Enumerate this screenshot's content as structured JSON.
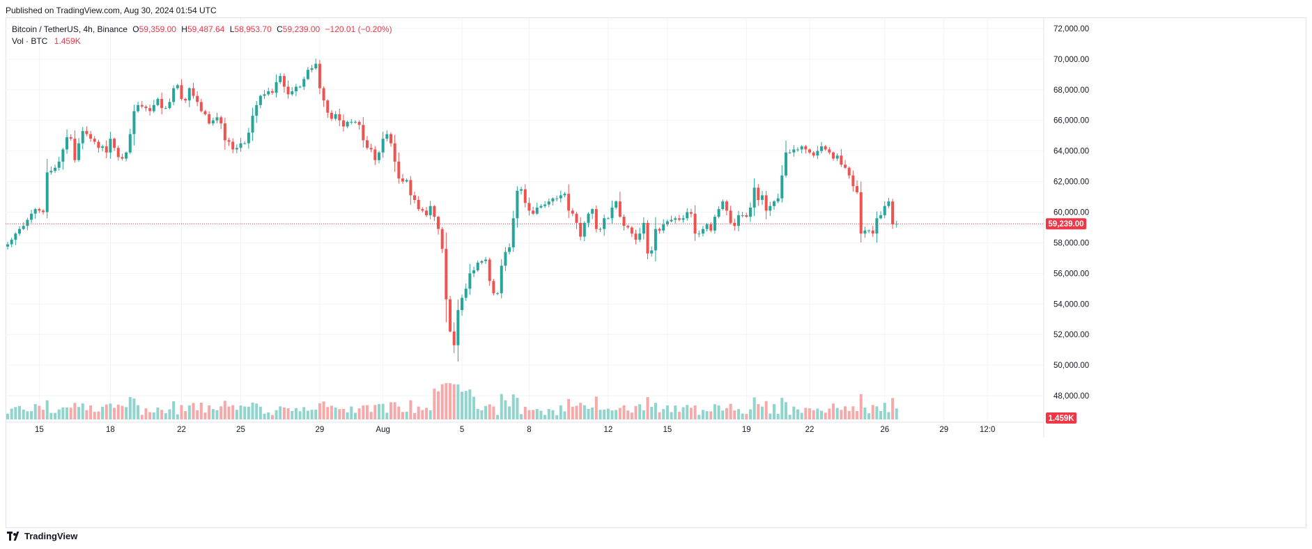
{
  "header": {
    "published": "Published on TradingView.com, Aug 30, 2024 01:54 UTC"
  },
  "legend": {
    "symbol": "Bitcoin / TetherUS, 4h, Binance",
    "o_key": "O",
    "o_val": "59,359.00",
    "h_key": "H",
    "h_val": "59,487.64",
    "l_key": "L",
    "l_val": "58,953.70",
    "c_key": "C",
    "c_val": "59,239.00",
    "change": "−120.01 (−0.20%)",
    "vol_label": "Vol · BTC",
    "vol_val": "1.459K"
  },
  "footer": {
    "brand": "TradingView"
  },
  "colors": {
    "up": "#26a69a",
    "down": "#ef5350",
    "vol_up": "#8fd5cd",
    "vol_down": "#f7a9a9",
    "grid": "#f0f3fa",
    "axis_text": "#131722",
    "price_line": "#f23645"
  },
  "chart_data": {
    "type": "candlestick",
    "symbol": "Bitcoin / TetherUS",
    "interval": "4h",
    "exchange": "Binance",
    "ylim": [
      47000,
      72500
    ],
    "y_ticks": [
      48000,
      50000,
      52000,
      54000,
      56000,
      58000,
      60000,
      62000,
      64000,
      66000,
      68000,
      70000,
      72000
    ],
    "y_tick_labels": [
      "48,000.00",
      "50,000.00",
      "52,000.00",
      "54,000.00",
      "56,000.00",
      "58,000.00",
      "60,000.00",
      "62,000.00",
      "64,000.00",
      "66,000.00",
      "68,000.00",
      "70,000.00",
      "72,000.00"
    ],
    "x_ticks": [
      {
        "label": "15",
        "bar": 8
      },
      {
        "label": "18",
        "bar": 26
      },
      {
        "label": "22",
        "bar": 44
      },
      {
        "label": "25",
        "bar": 59
      },
      {
        "label": "29",
        "bar": 79
      },
      {
        "label": "Aug",
        "bar": 95
      },
      {
        "label": "5",
        "bar": 115
      },
      {
        "label": "8",
        "bar": 132
      },
      {
        "label": "12",
        "bar": 152
      },
      {
        "label": "15",
        "bar": 167
      },
      {
        "label": "19",
        "bar": 187
      },
      {
        "label": "22",
        "bar": 203
      },
      {
        "label": "26",
        "bar": 222
      },
      {
        "label": "29",
        "bar": 237
      },
      {
        "label": "12:0",
        "bar": 248
      }
    ],
    "grid": true,
    "last_price": 59239,
    "last_price_label": "59,239.00",
    "last_volume_label": "1.459K",
    "closes": [
      57900,
      58200,
      58600,
      58900,
      59100,
      59500,
      59900,
      60200,
      60100,
      60000,
      62600,
      62700,
      62900,
      63300,
      64100,
      64900,
      64800,
      63400,
      64500,
      65300,
      65100,
      64800,
      64600,
      64200,
      64300,
      63900,
      64800,
      64200,
      63600,
      63500,
      63900,
      65100,
      66600,
      67000,
      66900,
      66800,
      66600,
      67000,
      67400,
      66800,
      66800,
      67200,
      68100,
      68300,
      67400,
      67300,
      68100,
      67600,
      67200,
      66600,
      66400,
      65800,
      66000,
      66200,
      65800,
      64700,
      64600,
      64100,
      64200,
      64500,
      64500,
      65200,
      66300,
      67000,
      67600,
      67700,
      67900,
      67800,
      68500,
      68900,
      68200,
      67700,
      67900,
      68200,
      68200,
      68700,
      69300,
      69400,
      69700,
      68100,
      67300,
      66500,
      66100,
      66400,
      66000,
      65600,
      65900,
      65900,
      65900,
      65700,
      64700,
      64200,
      64100,
      63400,
      63900,
      64800,
      65100,
      64500,
      63300,
      62200,
      62000,
      62100,
      61100,
      60800,
      60200,
      60100,
      59800,
      60400,
      59700,
      58900,
      57600,
      54300,
      52200,
      51300,
      53600,
      54400,
      55000,
      56000,
      56200,
      56700,
      56800,
      56900,
      55500,
      54700,
      54700,
      56500,
      57400,
      57700,
      59600,
      61400,
      61500,
      60600,
      60100,
      59900,
      60300,
      60400,
      60500,
      60700,
      60900,
      60900,
      61100,
      61200,
      60100,
      59900,
      59300,
      58400,
      59300,
      59900,
      60200,
      58900,
      58900,
      59600,
      59600,
      60300,
      60700,
      59700,
      59100,
      59000,
      58600,
      58200,
      58600,
      59300,
      57300,
      57500,
      58900,
      58800,
      59200,
      59400,
      59500,
      59600,
      59500,
      59600,
      60000,
      59900,
      58600,
      58600,
      58900,
      59200,
      58800,
      59700,
      60200,
      60700,
      60100,
      59300,
      59100,
      59800,
      59800,
      59700,
      60300,
      61600,
      60800,
      61100,
      60100,
      60400,
      60700,
      60900,
      62400,
      63900,
      63900,
      64100,
      64100,
      64300,
      64100,
      63900,
      63700,
      64000,
      64300,
      64100,
      63900,
      63500,
      63700,
      63100,
      62900,
      62400,
      61700,
      61300,
      58600,
      58800,
      58800,
      58600,
      59600,
      59800,
      60400,
      60700,
      59200,
      59239
    ]
  }
}
